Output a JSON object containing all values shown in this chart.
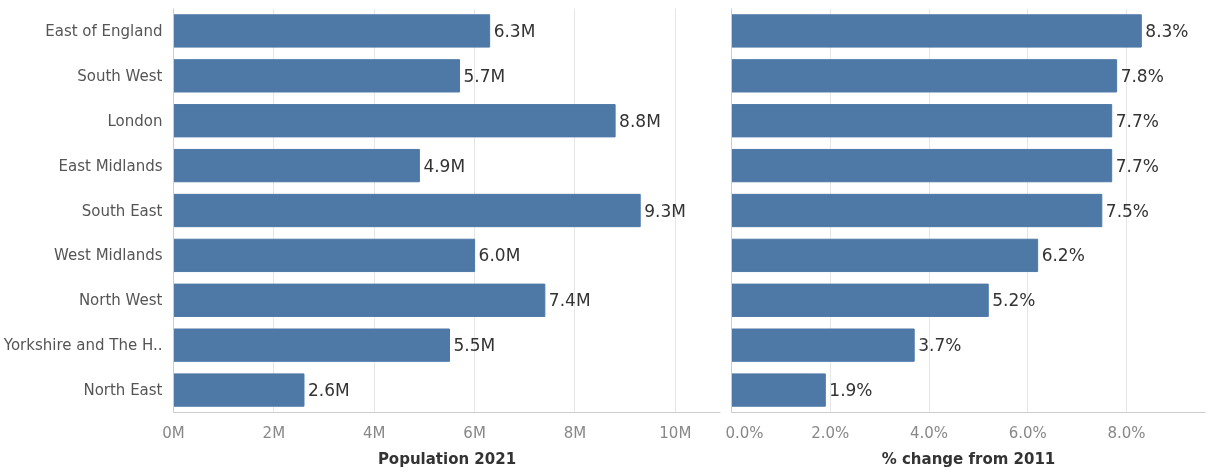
{
  "chart_data": [
    {
      "type": "bar",
      "orientation": "horizontal",
      "xlabel": "Population 2021",
      "categories": [
        "East of England",
        "South West",
        "London",
        "East Midlands",
        "South East",
        "West Midlands",
        "North West",
        "Yorkshire and The H..",
        "North East"
      ],
      "series": [
        {
          "color": "#4e79a7",
          "values": [
            6.3,
            5.7,
            8.8,
            4.9,
            9.3,
            6.0,
            7.4,
            5.5,
            2.6
          ],
          "value_labels": [
            "6.3M",
            "5.7M",
            "8.8M",
            "4.9M",
            "9.3M",
            "6.0M",
            "7.4M",
            "5.5M",
            "2.6M"
          ]
        }
      ],
      "xlim": [
        0,
        10.9
      ],
      "xticks": [
        {
          "value": 0,
          "label": "0M"
        },
        {
          "value": 2,
          "label": "2M"
        },
        {
          "value": 4,
          "label": "4M"
        },
        {
          "value": 6,
          "label": "6M"
        },
        {
          "value": 8,
          "label": "8M"
        },
        {
          "value": 10,
          "label": "10M"
        }
      ],
      "grid": "x"
    },
    {
      "type": "bar",
      "orientation": "horizontal",
      "xlabel": "% change from 2011",
      "categories": [
        null,
        null,
        null,
        null,
        null,
        null,
        null,
        null,
        null
      ],
      "series": [
        {
          "color": "#4e79a7",
          "values": [
            8.3,
            7.8,
            7.7,
            7.7,
            7.5,
            6.2,
            5.2,
            3.7,
            1.9
          ],
          "value_labels": [
            "8.3%",
            "7.8%",
            "7.7%",
            "7.7%",
            "7.5%",
            "6.2%",
            "5.2%",
            "3.7%",
            "1.9%"
          ]
        }
      ],
      "xlim": [
        0,
        9.6
      ],
      "xticks": [
        {
          "value": 0,
          "label": "0.0%"
        },
        {
          "value": 2,
          "label": "2.0%"
        },
        {
          "value": 4,
          "label": "4.0%"
        },
        {
          "value": 6,
          "label": "6.0%"
        },
        {
          "value": 8,
          "label": "8.0%"
        }
      ],
      "grid": "x",
      "tick_labels": "x"
    }
  ]
}
